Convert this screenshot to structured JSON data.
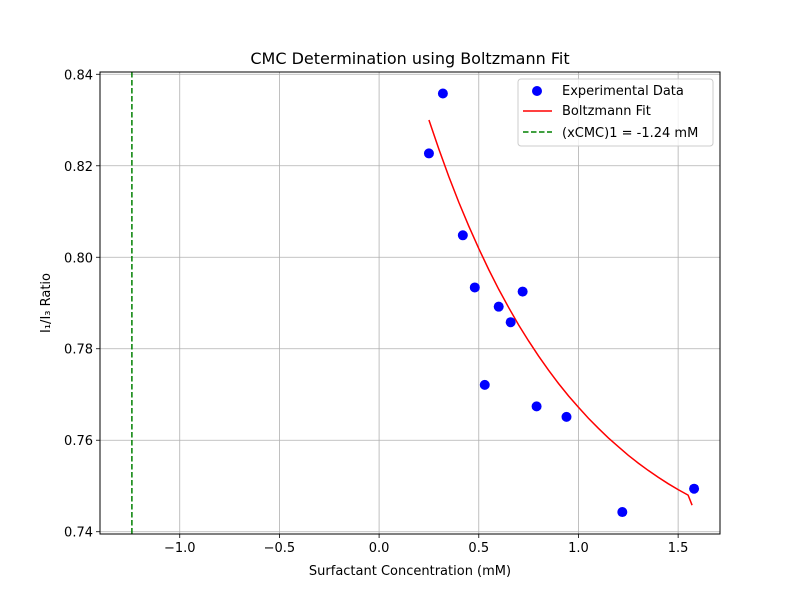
{
  "chart_data": {
    "type": "scatter",
    "title": "CMC Determination using Boltzmann Fit",
    "xlabel": "Surfactant Concentration (mM)",
    "ylabel": "I₁/I₃ Ratio",
    "xlim": [
      -1.4,
      1.71
    ],
    "ylim": [
      0.7395,
      0.8405
    ],
    "xticks": [
      -1.0,
      -0.5,
      0.0,
      0.5,
      1.0,
      1.5
    ],
    "xtick_labels": [
      "−1.0",
      "−0.5",
      "0.0",
      "0.5",
      "1.0",
      "1.5"
    ],
    "yticks": [
      0.74,
      0.76,
      0.78,
      0.8,
      0.82,
      0.84
    ],
    "ytick_labels": [
      "0.74",
      "0.76",
      "0.78",
      "0.80",
      "0.82",
      "0.84"
    ],
    "grid": true,
    "legend_position": "top-right",
    "series": [
      {
        "name": "Experimental Data",
        "kind": "scatter",
        "color": "#0000ff",
        "x": [
          0.25,
          0.32,
          0.42,
          0.48,
          0.53,
          0.6,
          0.66,
          0.72,
          0.79,
          0.94,
          1.22,
          1.58
        ],
        "y": [
          0.8227,
          0.8358,
          0.8048,
          0.7934,
          0.7721,
          0.7892,
          0.7858,
          0.7925,
          0.7674,
          0.7651,
          0.7443,
          0.7494
        ]
      },
      {
        "name": "Boltzmann Fit",
        "kind": "line",
        "color": "#ff0000",
        "x": [
          0.25,
          0.3,
          0.35,
          0.4,
          0.45,
          0.5,
          0.55,
          0.6,
          0.65,
          0.7,
          0.75,
          0.8,
          0.85,
          0.9,
          0.95,
          1.0,
          1.05,
          1.1,
          1.15,
          1.2,
          1.25,
          1.3,
          1.35,
          1.4,
          1.45,
          1.5,
          1.55,
          1.57
        ],
        "y": [
          0.83,
          0.8236,
          0.8176,
          0.812,
          0.8068,
          0.8019,
          0.7973,
          0.793,
          0.789,
          0.7852,
          0.7817,
          0.7784,
          0.7753,
          0.7724,
          0.7697,
          0.7672,
          0.7648,
          0.7626,
          0.7605,
          0.7586,
          0.7567,
          0.755,
          0.7534,
          0.7519,
          0.7505,
          0.7492,
          0.748,
          0.7458
        ]
      },
      {
        "name": "(xCMC)1 = -1.24 mM",
        "kind": "vline",
        "color": "#008000",
        "x_value": -1.24
      }
    ]
  }
}
